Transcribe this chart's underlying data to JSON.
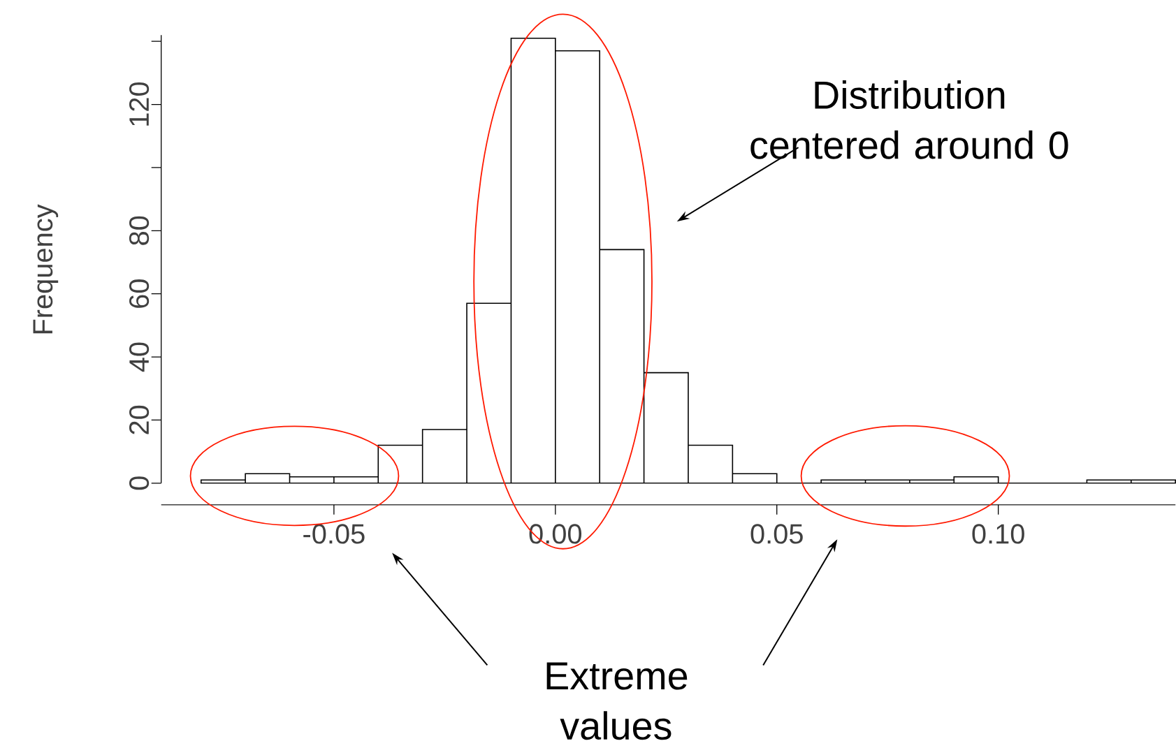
{
  "chart_data": {
    "type": "histogram",
    "ylabel": "Frequency",
    "bins": [
      -0.08,
      -0.07,
      -0.06,
      -0.05,
      -0.04,
      -0.03,
      -0.02,
      -0.01,
      0.0,
      0.01,
      0.02,
      0.03,
      0.04,
      0.05,
      0.06,
      0.07,
      0.08,
      0.09,
      0.1,
      0.11,
      0.12,
      0.13,
      0.14
    ],
    "values": [
      1,
      3,
      2,
      2,
      12,
      17,
      57,
      141,
      137,
      74,
      35,
      12,
      3,
      0,
      1,
      1,
      1,
      2,
      0,
      0,
      1,
      1
    ],
    "color": "#ffffff",
    "xlim": [
      -0.089,
      0.14
    ],
    "ylim": [
      0,
      142
    ],
    "xticks": [
      {
        "value": -0.05,
        "label": "-0.05"
      },
      {
        "value": 0.0,
        "label": "0.00"
      },
      {
        "value": 0.05,
        "label": "0.05"
      },
      {
        "value": 0.1,
        "label": "0.10"
      }
    ],
    "yticks": [
      0,
      20,
      40,
      60,
      80,
      {
        "value": 100,
        "label": null
      },
      120,
      {
        "value": 140,
        "label": null
      }
    ],
    "grid": false,
    "annotations": [
      "Distribution centered around 0",
      "Extreme values"
    ]
  }
}
